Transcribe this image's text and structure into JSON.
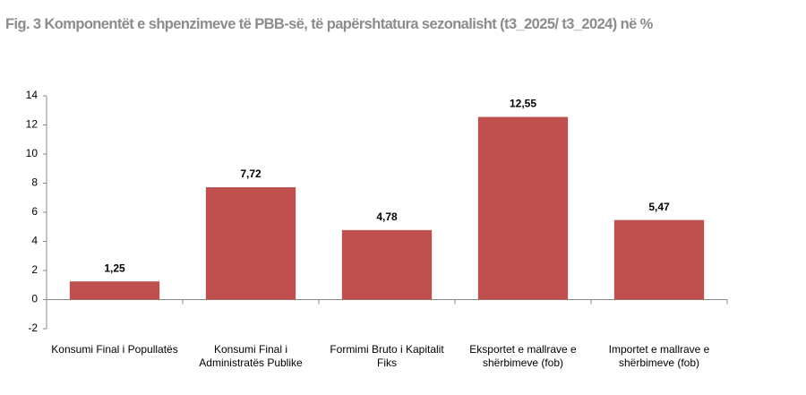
{
  "chart_data": {
    "type": "bar",
    "title": "Fig. 3 Komponentët  e shpenzimeve të PBB-së, të papërshtatura sezonalisht (t3_2025/ t3_2024) në %",
    "categories": [
      "Konsumi Final i Popullatës",
      "Konsumi Final i Administratës Publike",
      "Formimi Bruto i Kapitalit Fiks",
      "Eksportet e mallrave e shërbimeve (fob)",
      "Importet e mallrave e shërbimeve (fob)"
    ],
    "values": [
      1.25,
      7.72,
      4.78,
      12.55,
      5.47
    ],
    "value_labels": [
      "1,25",
      "7,72",
      "4,78",
      "12,55",
      "5,47"
    ],
    "color": "#c0504d",
    "ylim": [
      -2,
      14
    ],
    "yticks": [
      -2,
      0,
      2,
      4,
      6,
      8,
      10,
      12,
      14
    ],
    "grid": false
  }
}
